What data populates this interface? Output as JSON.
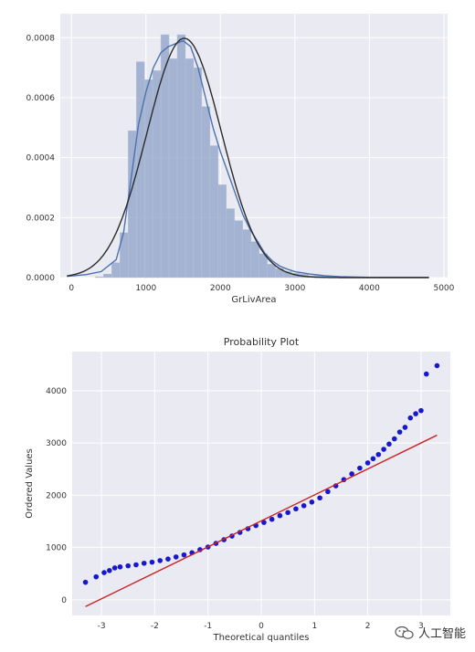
{
  "chart_data": [
    {
      "type": "bar",
      "subtype": "histogram-with-density",
      "title": "",
      "xlabel": "GrLivArea",
      "ylabel": "",
      "xlim": [
        -150,
        5050
      ],
      "ylim": [
        0,
        0.00088
      ],
      "xticks": [
        0,
        1000,
        2000,
        3000,
        4000,
        5000
      ],
      "yticks": [
        0.0,
        0.0002,
        0.0004,
        0.0006,
        0.0008
      ],
      "ytick_labels": [
        "0.0000",
        "0.0002",
        "0.0004",
        "0.0006",
        "0.0008"
      ],
      "grid": true,
      "bar_color": "#98a9cb",
      "bins": {
        "edges": [
          320,
          430,
          540,
          650,
          760,
          870,
          980,
          1090,
          1200,
          1310,
          1420,
          1530,
          1640,
          1750,
          1860,
          1970,
          2080,
          2190,
          2300,
          2410,
          2520,
          2630,
          2740,
          2850,
          2960,
          3070,
          3180,
          3290,
          3400,
          3510,
          3620,
          3730,
          3840,
          3950,
          4060,
          4170,
          4280,
          4390,
          4500,
          4610,
          4720
        ],
        "density": [
          3e-06,
          1.2e-05,
          5e-05,
          0.00015,
          0.00049,
          0.00072,
          0.00066,
          0.00069,
          0.00081,
          0.00073,
          0.00081,
          0.00073,
          0.0007,
          0.00057,
          0.00044,
          0.00031,
          0.00023,
          0.00019,
          0.00016,
          0.00012,
          8e-05,
          4.5e-05,
          3e-05,
          2e-05,
          1.5e-05,
          1.2e-05,
          6e-06,
          6e-06,
          5e-06,
          4e-06,
          2e-06,
          1e-06,
          1e-06,
          1e-06,
          1e-06,
          1e-06,
          1e-06,
          1e-06,
          1e-06,
          1e-06
        ]
      },
      "kde": {
        "color": "#4c72b0",
        "x": [
          -60,
          200,
          400,
          600,
          700,
          800,
          900,
          1000,
          1100,
          1200,
          1300,
          1400,
          1500,
          1600,
          1700,
          1800,
          1900,
          2000,
          2100,
          2200,
          2300,
          2400,
          2500,
          2600,
          2700,
          2800,
          2900,
          3000,
          3200,
          3400,
          3600,
          4000,
          4400,
          4800
        ],
        "y": [
          4e-06,
          1e-05,
          2e-05,
          6e-05,
          0.00015,
          0.00033,
          0.00051,
          0.00062,
          0.0007,
          0.00075,
          0.00077,
          0.00078,
          0.00079,
          0.00077,
          0.0007,
          0.0006,
          0.0005,
          0.00042,
          0.00035,
          0.00028,
          0.00021,
          0.00016,
          0.00012,
          8e-05,
          5.5e-05,
          3.8e-05,
          2.8e-05,
          2e-05,
          1.2e-05,
          6e-06,
          3e-06,
          1e-06,
          1e-06,
          1e-06
        ]
      },
      "normal_fit": {
        "color": "#2b2b2b",
        "mean": 1515,
        "std": 500
      }
    },
    {
      "type": "scatter",
      "subtype": "qq-probability-plot",
      "title": "Probability Plot",
      "xlabel": "Theoretical quantiles",
      "ylabel": "Ordered Values",
      "xlim": [
        -3.55,
        3.55
      ],
      "ylim": [
        -300,
        4750
      ],
      "xticks": [
        -3,
        -2,
        -1,
        0,
        1,
        2,
        3
      ],
      "yticks": [
        0,
        1000,
        2000,
        3000,
        4000
      ],
      "grid": true,
      "point_color": "#0000cc",
      "fit_line_color": "#cc2222",
      "fit_line": {
        "x": [
          -3.3,
          3.3
        ],
        "y": [
          -130,
          3150
        ]
      },
      "points": {
        "x": [
          -3.3,
          -3.1,
          -2.95,
          -2.85,
          -2.75,
          -2.65,
          -2.5,
          -2.35,
          -2.2,
          -2.05,
          -1.9,
          -1.75,
          -1.6,
          -1.45,
          -1.3,
          -1.15,
          -1.0,
          -0.85,
          -0.7,
          -0.55,
          -0.4,
          -0.25,
          -0.1,
          0.05,
          0.2,
          0.35,
          0.5,
          0.65,
          0.8,
          0.95,
          1.1,
          1.25,
          1.4,
          1.55,
          1.7,
          1.85,
          2.0,
          2.1,
          2.2,
          2.3,
          2.4,
          2.5,
          2.6,
          2.7,
          2.8,
          2.9,
          3.0,
          3.1,
          3.3
        ],
        "y": [
          335,
          440,
          520,
          560,
          610,
          630,
          650,
          670,
          700,
          720,
          750,
          780,
          820,
          860,
          900,
          960,
          1010,
          1080,
          1150,
          1220,
          1290,
          1360,
          1420,
          1480,
          1540,
          1610,
          1670,
          1740,
          1800,
          1870,
          1950,
          2070,
          2180,
          2300,
          2410,
          2520,
          2620,
          2700,
          2780,
          2880,
          2980,
          3080,
          3210,
          3300,
          3480,
          3560,
          3620,
          4320,
          4480
        ]
      }
    }
  ],
  "watermark": {
    "text": "人工智能",
    "icon": "wechat-logo-icon"
  }
}
